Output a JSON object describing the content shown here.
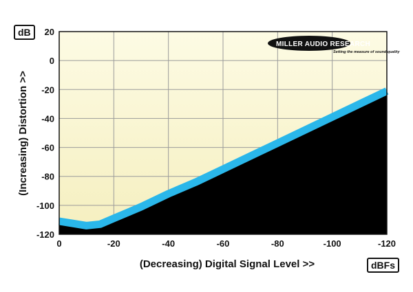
{
  "chart_data": {
    "type": "area",
    "xlabel": "(Decreasing) Digital Signal Level >>",
    "ylabel": "(Increasing) Distortion >>",
    "x_unit": "dBFs",
    "y_unit": "dB",
    "xlim": [
      0,
      -120
    ],
    "ylim": [
      -120,
      20
    ],
    "x_ticks": [
      0,
      -20,
      -40,
      -60,
      -80,
      -100,
      -120
    ],
    "y_ticks": [
      20,
      0,
      -20,
      -40,
      -60,
      -80,
      -100,
      -120
    ],
    "grid": true,
    "series": [
      {
        "x": [
          0,
          -5,
          -10,
          -15,
          -20,
          -25,
          -30,
          -40,
          -50,
          -60,
          -70,
          -80,
          -90,
          -100,
          -110,
          -120
        ],
        "y": [
          -111,
          -112.5,
          -114,
          -113,
          -109,
          -105,
          -101,
          -92,
          -84,
          -75,
          -66,
          -57,
          -48,
          -39,
          -30,
          -21
        ]
      }
    ],
    "colors": {
      "band": "#2ab7ea",
      "floor": "#000000",
      "plot_top": "#fdfbe4",
      "plot_bottom": "#f5efbf"
    }
  },
  "logo": {
    "brand": "MILLER AUDIO RESEARCH",
    "tagline": "Setting the measure of sound quality"
  }
}
